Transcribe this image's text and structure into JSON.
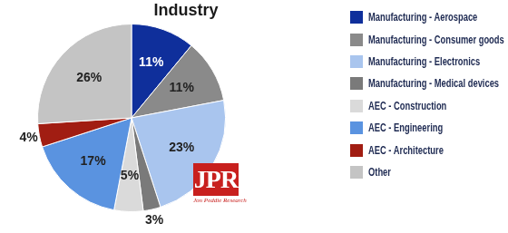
{
  "chart_data": {
    "type": "pie",
    "title": "Industry",
    "categories": [
      "Manufacturing - Aerospace",
      "Manufacturing - Consumer goods",
      "Manufacturing - Electronics",
      "Manufacturing - Medical devices",
      "AEC - Construction",
      "AEC - Engineering",
      "AEC - Architecture",
      "Other"
    ],
    "values": [
      11,
      11,
      23,
      3,
      5,
      17,
      4,
      26
    ],
    "value_labels": [
      "11%",
      "11%",
      "23%",
      "3%",
      "5%",
      "17%",
      "4%",
      "26%"
    ],
    "colors": [
      "#0f2f9b",
      "#8a8a8a",
      "#a9c5ee",
      "#7a7a7a",
      "#dadada",
      "#5a93e0",
      "#a11d12",
      "#c4c4c4"
    ],
    "data_labels": true,
    "legend": "right",
    "annotations": [
      "JPR",
      "Jon Peddie Research"
    ]
  }
}
